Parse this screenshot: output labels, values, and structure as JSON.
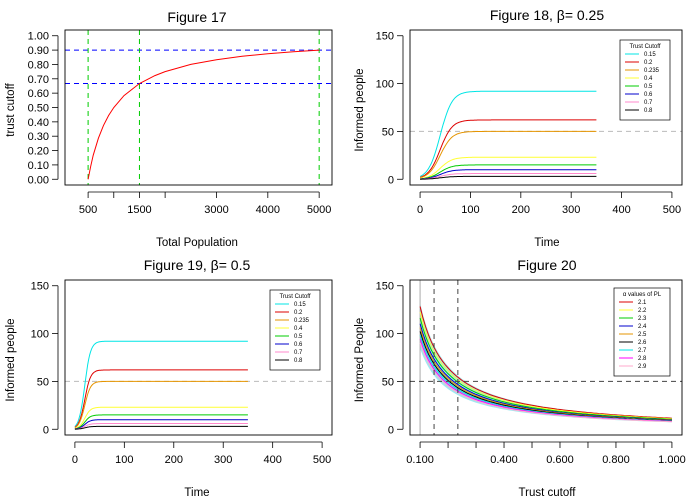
{
  "chart_data": [
    {
      "type": "line",
      "title": "Figure 17",
      "xlabel": "Total Population",
      "ylabel": "trust cutoff",
      "xlim": [
        50,
        5250
      ],
      "ylim": [
        -0.04,
        1.04
      ],
      "xticks": [
        500,
        1500,
        3000,
        4000,
        5000
      ],
      "xticks_unlabeled": [
        1000,
        2000
      ],
      "yticks": [
        0.0,
        0.1,
        0.2,
        0.3,
        0.4,
        0.5,
        0.6,
        0.7,
        0.8,
        0.9,
        1.0
      ],
      "ytick_labels": [
        "0.00",
        "0.10",
        "0.20",
        "0.30",
        "0.40",
        "0.50",
        "0.60",
        "0.70",
        "0.80",
        "0.90",
        "1.00"
      ],
      "series": [
        {
          "name": "trust cutoff",
          "color": "#ff0000",
          "x": [
            500,
            550,
            600,
            700,
            800,
            900,
            1000,
            1200,
            1500,
            1800,
            2000,
            2500,
            3000,
            3500,
            4000,
            4500,
            5000
          ],
          "y": [
            0.0,
            0.09,
            0.167,
            0.286,
            0.375,
            0.444,
            0.5,
            0.583,
            0.667,
            0.722,
            0.75,
            0.8,
            0.833,
            0.857,
            0.875,
            0.889,
            0.9
          ]
        }
      ],
      "hlines": [
        {
          "y": 0.9,
          "color": "#0000ff"
        },
        {
          "y": 0.667,
          "color": "#0000ff"
        }
      ],
      "vlines": [
        {
          "x": 500,
          "color": "#00cc00"
        },
        {
          "x": 1500,
          "color": "#00cc00"
        },
        {
          "x": 5000,
          "color": "#00cc00"
        }
      ]
    },
    {
      "type": "line",
      "title": "Figure 18, β= 0.25",
      "xlabel": "Time",
      "ylabel": "Informed people",
      "xlim": [
        -20,
        520
      ],
      "ylim": [
        -6,
        156
      ],
      "xticks": [
        0,
        100,
        200,
        300,
        400,
        500
      ],
      "yticks": [
        0,
        50,
        100,
        150
      ],
      "x_end": 350,
      "rise": 0.085,
      "midpoint": 40,
      "legend_title": "Trust Cutoff",
      "hline": {
        "y": 50,
        "color": "#bbbbbb"
      },
      "series": [
        {
          "name": "0.15",
          "color": "#00e5e5",
          "plateau": 92
        },
        {
          "name": "0.2",
          "color": "#dd0000",
          "plateau": 62
        },
        {
          "name": "0.235",
          "color": "#e69500",
          "plateau": 50
        },
        {
          "name": "0.4",
          "color": "#ffff33",
          "plateau": 23
        },
        {
          "name": "0.5",
          "color": "#00cc00",
          "plateau": 15
        },
        {
          "name": "0.6",
          "color": "#0000cc",
          "plateau": 10
        },
        {
          "name": "0.7",
          "color": "#ff88cc",
          "plateau": 6
        },
        {
          "name": "0.8",
          "color": "#000000",
          "plateau": 3
        }
      ]
    },
    {
      "type": "line",
      "title": "Figure 19, β= 0.5",
      "xlabel": "Time",
      "ylabel": "Informed people",
      "xlim": [
        -20,
        520
      ],
      "ylim": [
        -6,
        156
      ],
      "xticks": [
        0,
        100,
        200,
        300,
        400,
        500
      ],
      "yticks": [
        0,
        50,
        100,
        150
      ],
      "x_end": 350,
      "rise": 0.17,
      "midpoint": 20,
      "legend_title": "Trust Cutoff",
      "hline": {
        "y": 50,
        "color": "#bbbbbb"
      },
      "series": [
        {
          "name": "0.15",
          "color": "#00e5e5",
          "plateau": 92
        },
        {
          "name": "0.2",
          "color": "#dd0000",
          "plateau": 62
        },
        {
          "name": "0.235",
          "color": "#e69500",
          "plateau": 50
        },
        {
          "name": "0.4",
          "color": "#ffff33",
          "plateau": 23
        },
        {
          "name": "0.5",
          "color": "#00cc00",
          "plateau": 15
        },
        {
          "name": "0.6",
          "color": "#0000cc",
          "plateau": 10
        },
        {
          "name": "0.7",
          "color": "#ff88cc",
          "plateau": 6
        },
        {
          "name": "0.8",
          "color": "#000000",
          "plateau": 3
        }
      ]
    },
    {
      "type": "line",
      "title": "Figure 20",
      "xlabel": "Trust cutoff",
      "ylabel": "Informed People",
      "xlim": [
        0.064,
        1.036
      ],
      "ylim": [
        -6,
        156
      ],
      "xticks": [
        0.1,
        0.4,
        0.6,
        0.8,
        1.0
      ],
      "xtick_labels": [
        "0.100",
        "0.400",
        "0.600",
        "0.800",
        "1.000"
      ],
      "xticks_unlabeled": [
        0.2,
        0.3,
        0.5,
        0.7,
        0.9
      ],
      "yticks": [
        0,
        50,
        100,
        150
      ],
      "legend_title": "α values of PL",
      "hline": {
        "y": 50,
        "color": "#444444"
      },
      "vlines": [
        {
          "x": 0.15,
          "color": "#444444"
        },
        {
          "x": 0.235,
          "color": "#444444"
        }
      ],
      "x_range": [
        0.1,
        1.0
      ],
      "band_color": "#8ee5ee",
      "series": [
        {
          "name": "2.1",
          "color": "#dd0000",
          "y_at_0_2": 64
        },
        {
          "name": "2.2",
          "color": "#ffff33",
          "y_at_0_2": 61
        },
        {
          "name": "2.3",
          "color": "#00cc00",
          "y_at_0_2": 58
        },
        {
          "name": "2.4",
          "color": "#0000cc",
          "y_at_0_2": 55
        },
        {
          "name": "2.5",
          "color": "#e69500",
          "y_at_0_2": 53
        },
        {
          "name": "2.6",
          "color": "#000000",
          "y_at_0_2": 51
        },
        {
          "name": "2.7",
          "color": "#00e5e5",
          "y_at_0_2": 49
        },
        {
          "name": "2.8",
          "color": "#ff00ff",
          "y_at_0_2": 47
        },
        {
          "name": "2.9",
          "color": "#ffaacc",
          "y_at_0_2": 45
        }
      ]
    }
  ]
}
